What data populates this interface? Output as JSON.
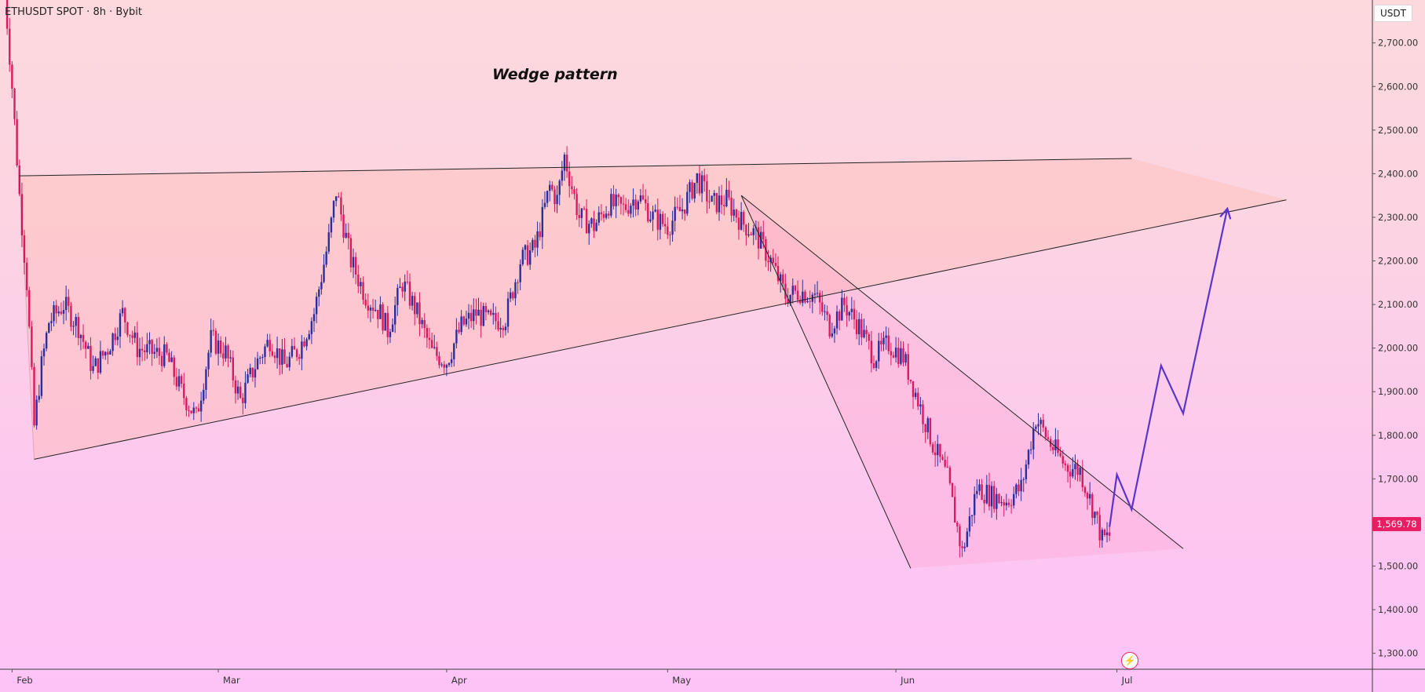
{
  "header": {
    "symbol": "ETHUSDT SPOT · 8h · Bybit",
    "currency": "USDT"
  },
  "annotation": "Wedge pattern",
  "last_price_label": "1,569.78",
  "colors": {
    "up": "#2b2f9e",
    "down": "#d81b60",
    "projection": "#5b35c9",
    "last_price": "#e91e63"
  },
  "icons": {
    "flash": "lightning-bolt-icon"
  },
  "chart_data": {
    "type": "candlestick",
    "title": "ETHUSDT SPOT · 8h · Bybit",
    "ylim": [
      1240,
      2820
    ],
    "y_ticks": [
      {
        "value": 2700,
        "label": "2,700.00"
      },
      {
        "value": 2600,
        "label": "2,600.00"
      },
      {
        "value": 2500,
        "label": "2,500.00"
      },
      {
        "value": 2400,
        "label": "2,400.00"
      },
      {
        "value": 2300,
        "label": "2,300.00"
      },
      {
        "value": 2200,
        "label": "2,200.00"
      },
      {
        "value": 2100,
        "label": "2,100.00"
      },
      {
        "value": 2000,
        "label": "2,000.00"
      },
      {
        "value": 1900,
        "label": "1,900.00"
      },
      {
        "value": 1800,
        "label": "1,800.00"
      },
      {
        "value": 1700,
        "label": "1,700.00"
      },
      {
        "value": 1600,
        "label": "1,600.00"
      },
      {
        "value": 1500,
        "label": "1,500.00"
      },
      {
        "value": 1400,
        "label": "1,400.00"
      },
      {
        "value": 1300,
        "label": "1,300.00"
      }
    ],
    "x_ticks": [
      {
        "date": "2023-02-01",
        "label": "Feb"
      },
      {
        "date": "2023-03-01",
        "label": "Mar"
      },
      {
        "date": "2023-04-01",
        "label": "Apr"
      },
      {
        "date": "2023-05-01",
        "label": "May"
      },
      {
        "date": "2023-06-01",
        "label": "Jun"
      },
      {
        "date": "2023-07-01",
        "label": "Jul"
      }
    ],
    "price_path": [
      [
        "2023-01-31",
        2820
      ],
      [
        "2023-02-01",
        2600
      ],
      [
        "2023-02-02",
        2350
      ],
      [
        "2023-02-03",
        2150
      ],
      [
        "2023-02-04",
        1820
      ],
      [
        "2023-02-05",
        1960
      ],
      [
        "2023-02-06",
        2060
      ],
      [
        "2023-02-08",
        2100
      ],
      [
        "2023-02-10",
        2050
      ],
      [
        "2023-02-12",
        1950
      ],
      [
        "2023-02-14",
        2000
      ],
      [
        "2023-02-16",
        2080
      ],
      [
        "2023-02-18",
        2000
      ],
      [
        "2023-02-20",
        1990
      ],
      [
        "2023-02-22",
        1980
      ],
      [
        "2023-02-24",
        1900
      ],
      [
        "2023-02-26",
        1840
      ],
      [
        "2023-02-28",
        2020
      ],
      [
        "2023-03-02",
        1990
      ],
      [
        "2023-03-04",
        1880
      ],
      [
        "2023-03-06",
        1960
      ],
      [
        "2023-03-08",
        2020
      ],
      [
        "2023-03-10",
        1960
      ],
      [
        "2023-03-12",
        2000
      ],
      [
        "2023-03-14",
        2080
      ],
      [
        "2023-03-16",
        2250
      ],
      [
        "2023-03-17",
        2360
      ],
      [
        "2023-03-19",
        2200
      ],
      [
        "2023-03-21",
        2120
      ],
      [
        "2023-03-23",
        2080
      ],
      [
        "2023-03-24",
        2040
      ],
      [
        "2023-03-26",
        2150
      ],
      [
        "2023-03-28",
        2080
      ],
      [
        "2023-03-30",
        1990
      ],
      [
        "2023-04-01",
        1970
      ],
      [
        "2023-04-03",
        2050
      ],
      [
        "2023-04-05",
        2080
      ],
      [
        "2023-04-07",
        2060
      ],
      [
        "2023-04-09",
        2070
      ],
      [
        "2023-04-11",
        2200
      ],
      [
        "2023-04-13",
        2230
      ],
      [
        "2023-04-15",
        2370
      ],
      [
        "2023-04-16",
        2340
      ],
      [
        "2023-04-17",
        2440
      ],
      [
        "2023-04-19",
        2300
      ],
      [
        "2023-04-21",
        2280
      ],
      [
        "2023-04-23",
        2330
      ],
      [
        "2023-04-25",
        2320
      ],
      [
        "2023-04-27",
        2350
      ],
      [
        "2023-04-29",
        2300
      ],
      [
        "2023-05-01",
        2280
      ],
      [
        "2023-05-03",
        2320
      ],
      [
        "2023-05-05",
        2390
      ],
      [
        "2023-05-07",
        2330
      ],
      [
        "2023-05-09",
        2340
      ],
      [
        "2023-05-11",
        2290
      ],
      [
        "2023-05-13",
        2260
      ],
      [
        "2023-05-15",
        2200
      ],
      [
        "2023-05-17",
        2120
      ],
      [
        "2023-05-19",
        2130
      ],
      [
        "2023-05-21",
        2120
      ],
      [
        "2023-05-23",
        2050
      ],
      [
        "2023-05-25",
        2100
      ],
      [
        "2023-05-27",
        2050
      ],
      [
        "2023-05-29",
        1980
      ],
      [
        "2023-05-31",
        2010
      ],
      [
        "2023-06-02",
        1980
      ],
      [
        "2023-06-04",
        1880
      ],
      [
        "2023-06-06",
        1780
      ],
      [
        "2023-06-08",
        1700
      ],
      [
        "2023-06-10",
        1530
      ],
      [
        "2023-06-12",
        1680
      ],
      [
        "2023-06-14",
        1660
      ],
      [
        "2023-06-16",
        1650
      ],
      [
        "2023-06-18",
        1680
      ],
      [
        "2023-06-20",
        1840
      ],
      [
        "2023-06-22",
        1780
      ],
      [
        "2023-06-24",
        1730
      ],
      [
        "2023-06-26",
        1720
      ],
      [
        "2023-06-28",
        1620
      ],
      [
        "2023-06-29",
        1560
      ],
      [
        "2023-06-30",
        1570
      ]
    ],
    "annotations": {
      "wedge_upper": [
        [
          "2023-02-02",
          2395
        ],
        [
          "2023-07-03",
          2435
        ]
      ],
      "wedge_lower": [
        [
          "2023-02-04",
          1745
        ],
        [
          "2023-07-24",
          2340
        ]
      ],
      "wedge_fill_right": [
        "2023-07-06",
        2435
      ],
      "falling_wedge_upper": [
        [
          "2023-05-11",
          2350
        ],
        [
          "2023-07-10",
          1540
        ]
      ],
      "falling_wedge_lower": [
        [
          "2023-06-03",
          1495
        ],
        [
          "2023-07-10",
          1540
        ]
      ],
      "falling_wedge_top_left": [
        "2023-05-11",
        2350
      ],
      "falling_wedge_lower_left": [
        "2023-05-17",
        2100
      ],
      "projection": [
        [
          "2023-06-30",
          1590
        ],
        [
          "2023-07-01",
          1710
        ],
        [
          "2023-07-03",
          1630
        ],
        [
          "2023-07-07",
          1960
        ],
        [
          "2023-07-10",
          1850
        ],
        [
          "2023-07-16",
          2320
        ]
      ]
    }
  }
}
